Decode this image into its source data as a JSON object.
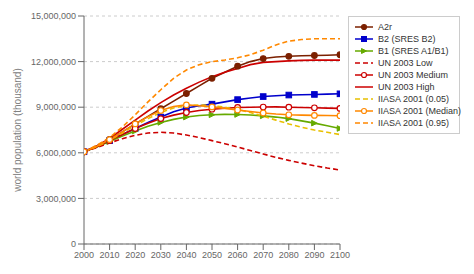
{
  "chart_data": {
    "type": "line",
    "ylabel": "world population (thousand)",
    "x": [
      2000,
      2005,
      2010,
      2015,
      2020,
      2025,
      2030,
      2035,
      2040,
      2045,
      2050,
      2055,
      2060,
      2065,
      2070,
      2075,
      2080,
      2085,
      2090,
      2095,
      2100
    ],
    "xlim": [
      2000,
      2100
    ],
    "xticks": [
      2000,
      2010,
      2020,
      2030,
      2040,
      2050,
      2060,
      2070,
      2080,
      2090,
      2100
    ],
    "ylim": [
      0,
      15000000
    ],
    "yticks": [
      0,
      {
        "value": 3000000,
        "label": "3,000,000"
      },
      {
        "value": 6000000,
        "label": "6,000,000"
      },
      {
        "value": 9000000,
        "label": "9,000,000"
      },
      {
        "value": 12000000,
        "label": "12,000,000"
      },
      {
        "value": 15000000,
        "label": "15,000,000"
      }
    ],
    "grid": true,
    "legend": "right",
    "series": [
      {
        "name": "A2r",
        "color": "#7b2000",
        "line_style": "solid",
        "marker": "circle",
        "values": [
          6070000,
          6450000,
          6880000,
          7380000,
          7900000,
          8400000,
          8900000,
          9400000,
          9900000,
          10400000,
          10900000,
          11300000,
          11700000,
          12000000,
          12200000,
          12300000,
          12350000,
          12380000,
          12400000,
          12420000,
          12450000
        ]
      },
      {
        "name": "B2 (SRES B2)",
        "color": "#0000cc",
        "line_style": "solid",
        "marker": "square",
        "values": [
          6070000,
          6400000,
          6800000,
          7200000,
          7600000,
          8000000,
          8350000,
          8700000,
          8950000,
          9100000,
          9200000,
          9350000,
          9500000,
          9600000,
          9700000,
          9750000,
          9800000,
          9820000,
          9840000,
          9860000,
          9880000
        ]
      },
      {
        "name": "B1 (SRES A1/B1)",
        "color": "#66aa00",
        "line_style": "solid",
        "marker": "triangle_right",
        "values": [
          6070000,
          6380000,
          6750000,
          7100000,
          7430000,
          7750000,
          8000000,
          8200000,
          8350000,
          8450000,
          8500000,
          8530000,
          8520000,
          8490000,
          8430000,
          8350000,
          8250000,
          8100000,
          7950000,
          7780000,
          7600000
        ]
      },
      {
        "name": "UN 2003 Low",
        "color": "#cc0000",
        "line_style": "dashed",
        "values": [
          6070000,
          6350000,
          6650000,
          6930000,
          7150000,
          7300000,
          7350000,
          7300000,
          7170000,
          7000000,
          6800000,
          6600000,
          6380000,
          6150000,
          5920000,
          5700000,
          5500000,
          5320000,
          5150000,
          5000000,
          4870000
        ]
      },
      {
        "name": "UN 2003 Medium",
        "color": "#cc0000",
        "line_style": "solid",
        "marker": "circle_open",
        "values": [
          6070000,
          6400000,
          6800000,
          7200000,
          7600000,
          7950000,
          8250000,
          8480000,
          8650000,
          8780000,
          8870000,
          8930000,
          8980000,
          9000000,
          9010000,
          9020000,
          9000000,
          8980000,
          8960000,
          8940000,
          8920000
        ]
      },
      {
        "name": "UN 2003 High",
        "color": "#cc0000",
        "line_style": "solid",
        "values": [
          6070000,
          6450000,
          6950000,
          7550000,
          8150000,
          8750000,
          9300000,
          9800000,
          10250000,
          10650000,
          11000000,
          11300000,
          11550000,
          11800000,
          11950000,
          12000000,
          12050000,
          12080000,
          12100000,
          12100000,
          12100000
        ]
      },
      {
        "name": "IIASA 2001 (0.05)",
        "color": "#e8c000",
        "line_style": "dashed",
        "values": [
          6070000,
          6400000,
          6820000,
          7300000,
          7800000,
          8250000,
          8650000,
          8950000,
          9100000,
          9150000,
          9100000,
          9000000,
          8850000,
          8650000,
          8400000,
          8150000,
          7900000,
          7680000,
          7500000,
          7350000,
          7200000
        ]
      },
      {
        "name": "IIASA 2001 (Median)",
        "color": "#ff8800",
        "line_style": "solid",
        "marker": "circle_open",
        "values": [
          6070000,
          6430000,
          6870000,
          7380000,
          7900000,
          8380000,
          8780000,
          9050000,
          9150000,
          9100000,
          9020000,
          8920000,
          8820000,
          8720000,
          8620000,
          8550000,
          8500000,
          8480000,
          8460000,
          8450000,
          8440000
        ]
      },
      {
        "name": "IIASA 2001 (0.95)",
        "color": "#ff8800",
        "line_style": "dashed",
        "values": [
          6070000,
          6500000,
          7000000,
          7700000,
          8500000,
          9350000,
          10150000,
          10900000,
          11450000,
          11800000,
          12000000,
          12100000,
          12250000,
          12450000,
          12750000,
          13100000,
          13350000,
          13450000,
          13500000,
          13500000,
          13500000
        ]
      }
    ]
  }
}
